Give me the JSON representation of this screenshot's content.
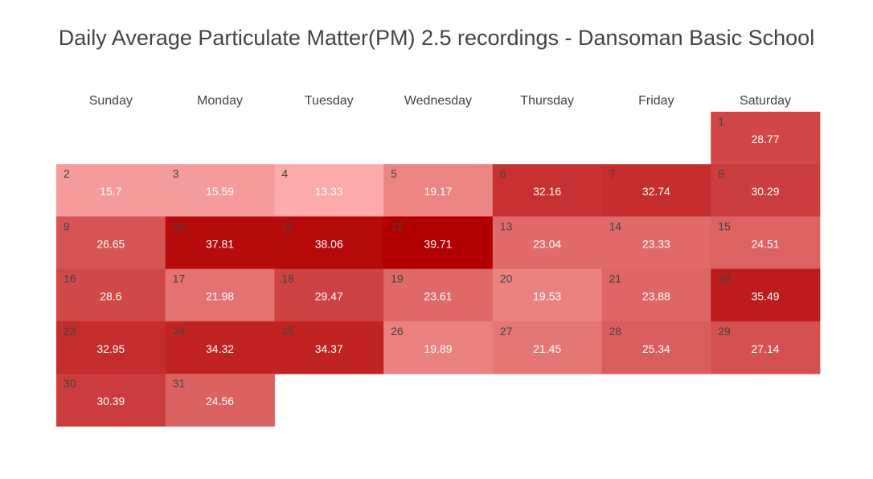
{
  "chart_data": {
    "type": "heatmap",
    "title": "Daily Average Particulate Matter(PM) 2.5 recordings - Dansoman Basic School",
    "weekdays": [
      "Sunday",
      "Monday",
      "Tuesday",
      "Wednesday",
      "Thursday",
      "Friday",
      "Saturday"
    ],
    "first_weekday_index": 6,
    "days": [
      {
        "day": 1,
        "value": 28.77
      },
      {
        "day": 2,
        "value": 15.7
      },
      {
        "day": 3,
        "value": 15.59
      },
      {
        "day": 4,
        "value": 13.33
      },
      {
        "day": 5,
        "value": 19.17
      },
      {
        "day": 6,
        "value": 32.16
      },
      {
        "day": 7,
        "value": 32.74
      },
      {
        "day": 8,
        "value": 30.29
      },
      {
        "day": 9,
        "value": 26.65
      },
      {
        "day": 10,
        "value": 37.81
      },
      {
        "day": 11,
        "value": 38.06
      },
      {
        "day": 12,
        "value": 39.71
      },
      {
        "day": 13,
        "value": 23.04
      },
      {
        "day": 14,
        "value": 23.33
      },
      {
        "day": 15,
        "value": 24.51
      },
      {
        "day": 16,
        "value": 28.6
      },
      {
        "day": 17,
        "value": 21.98
      },
      {
        "day": 18,
        "value": 29.47
      },
      {
        "day": 19,
        "value": 23.61
      },
      {
        "day": 20,
        "value": 19.53
      },
      {
        "day": 21,
        "value": 23.88
      },
      {
        "day": 22,
        "value": 35.49
      },
      {
        "day": 23,
        "value": 32.95
      },
      {
        "day": 24,
        "value": 34.32
      },
      {
        "day": 25,
        "value": 34.37
      },
      {
        "day": 26,
        "value": 19.89
      },
      {
        "day": 27,
        "value": 21.45
      },
      {
        "day": 28,
        "value": 25.34
      },
      {
        "day": 29,
        "value": 27.14
      },
      {
        "day": 30,
        "value": 30.39
      },
      {
        "day": 31,
        "value": 24.56
      }
    ],
    "color_scale": {
      "low": "#fcaaaa",
      "high": "#b20000",
      "min": 13.33,
      "max": 39.71
    }
  }
}
